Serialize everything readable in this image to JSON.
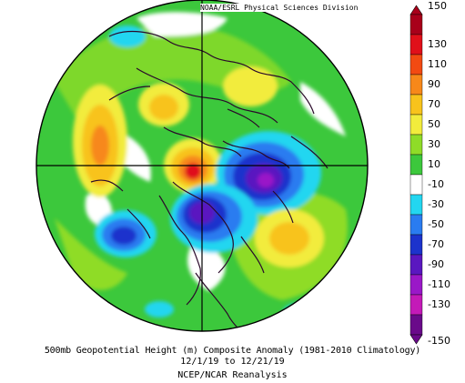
{
  "credit": "NOAA/ESRL Physical Sciences Division",
  "caption": {
    "title": "500mb Geopotential Height (m) Composite Anomaly (1981-2010 Climatology)",
    "dates": "12/1/19  to 12/21/19",
    "source": "NCEP/NCAR Reanalysis"
  },
  "colorbar": {
    "labels": [
      "150",
      "130",
      "110",
      "90",
      "70",
      "50",
      "30",
      "10",
      "-10",
      "-30",
      "-50",
      "-70",
      "-90",
      "-110",
      "-130",
      "-150"
    ],
    "colors": [
      "#a8001a",
      "#e0101a",
      "#f24a12",
      "#f7881a",
      "#f8c31c",
      "#f2ec3c",
      "#8fdc28",
      "#3cc83c",
      "#ffffff",
      "#23d6f0",
      "#2a7cf0",
      "#1c33cc",
      "#5a17c0",
      "#9a18c8",
      "#c41ab8",
      "#6a0a8a"
    ]
  }
}
